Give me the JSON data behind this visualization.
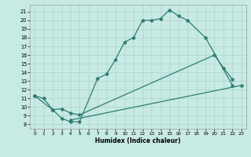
{
  "title": "",
  "xlabel": "Humidex (Indice chaleur)",
  "bg_color": "#c8eae4",
  "grid_color": "#b0d8d0",
  "line_color": "#2e7d6e",
  "xlim": [
    -0.5,
    23.5
  ],
  "ylim": [
    7.5,
    21.8
  ],
  "xticks": [
    0,
    1,
    2,
    3,
    4,
    5,
    6,
    7,
    8,
    9,
    10,
    11,
    12,
    13,
    14,
    15,
    16,
    17,
    18,
    19,
    20,
    21,
    22,
    23
  ],
  "yticks": [
    8,
    9,
    10,
    11,
    12,
    13,
    14,
    15,
    16,
    17,
    18,
    19,
    20,
    21
  ],
  "line1_x": [
    0,
    1,
    2,
    3,
    4,
    5,
    7,
    8,
    9,
    10,
    11,
    12,
    13,
    14,
    15,
    16,
    17,
    19,
    22
  ],
  "line1_y": [
    11.3,
    11.0,
    9.7,
    8.7,
    8.3,
    8.3,
    13.3,
    13.8,
    15.5,
    17.5,
    18.0,
    20.0,
    20.0,
    20.2,
    21.2,
    20.5,
    20.0,
    18.0,
    12.5
  ],
  "line2_x": [
    0,
    2,
    3,
    4,
    5,
    20,
    21,
    22
  ],
  "line2_y": [
    11.3,
    9.7,
    9.8,
    9.3,
    9.1,
    16.0,
    14.5,
    13.2
  ],
  "line3_x": [
    4,
    23
  ],
  "line3_y": [
    8.5,
    12.5
  ]
}
